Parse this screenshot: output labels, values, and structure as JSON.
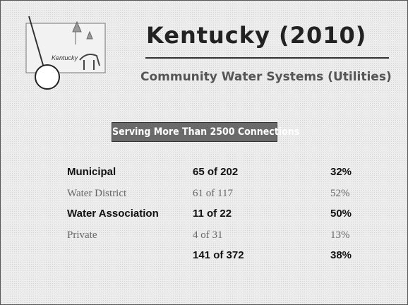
{
  "logo": {
    "label": "Kentucky"
  },
  "header": {
    "title": "Kentucky (2010)",
    "subtitle": "Community Water Systems (Utilities)"
  },
  "banner": "Serving More Than 2500 Connections",
  "table": {
    "rows": [
      [
        "Municipal",
        "65 of 202",
        "32%"
      ],
      [
        "Water District",
        "61 of 117",
        "52%"
      ],
      [
        "Water Association",
        "11 of 22",
        "50%"
      ],
      [
        "Private",
        "4 of 31",
        "13%"
      ]
    ],
    "total": {
      "systems": "141 of 372",
      "percent": "38%"
    }
  }
}
